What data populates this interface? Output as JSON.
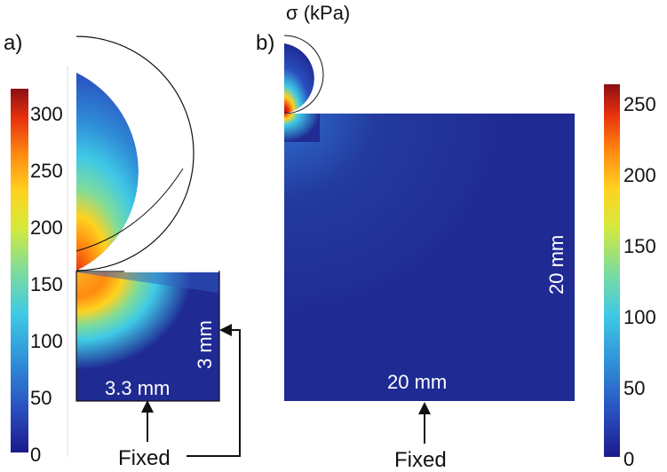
{
  "title": "σ (kPa)",
  "panels": {
    "a": {
      "label": "a)",
      "width_label": "3.3 mm",
      "height_label": "3 mm",
      "fixed_label": "Fixed"
    },
    "b": {
      "label": "b)",
      "width_label": "20 mm",
      "height_label": "20 mm",
      "fixed_label": "Fixed"
    }
  },
  "colorbars": {
    "left": {
      "ticks": [
        "0",
        "50",
        "100",
        "150",
        "200",
        "250",
        "300"
      ]
    },
    "right": {
      "ticks": [
        "0",
        "50",
        "100",
        "150",
        "200",
        "250"
      ]
    }
  },
  "colors": {
    "background_field": "#1f2a93",
    "colormap": [
      "#1b1b8c",
      "#2a4fbf",
      "#2f8fd8",
      "#3fc9e6",
      "#7fdc9a",
      "#d7e93a",
      "#ffd21f",
      "#ff8a10",
      "#e8300e",
      "#8b0f12"
    ]
  }
}
